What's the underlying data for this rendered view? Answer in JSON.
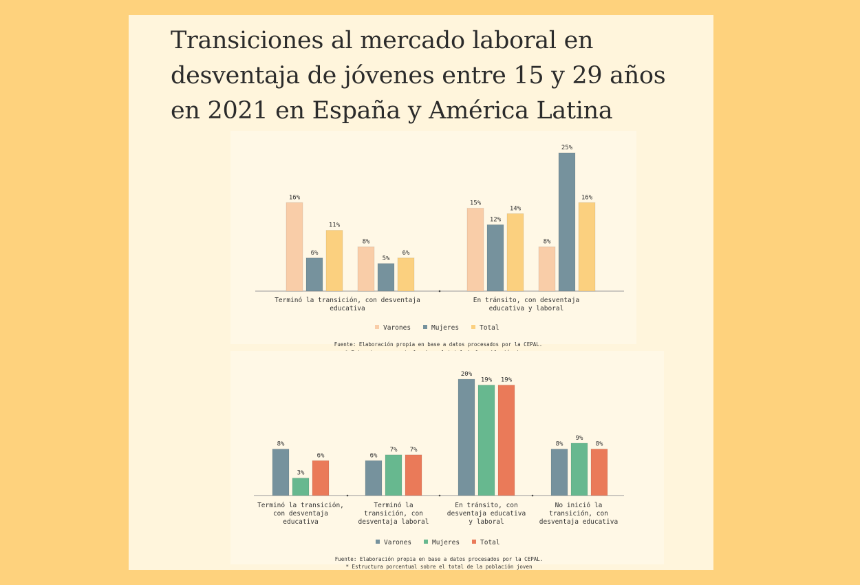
{
  "page": {
    "title": "Transiciones al mercado laboral en desventaja de jóvenes entre 15 y 29 años en 2021 en España y América Latina"
  },
  "chart_data": [
    {
      "type": "bar",
      "categories": [
        "Terminó la transición, con desventaja educativa",
        "En tránsito, con desventaja educativa y laboral"
      ],
      "groups": [
        {
          "category_index": 0,
          "series": [
            {
              "name": "Varones",
              "value": 16
            },
            {
              "name": "Mujeres",
              "value": 6
            },
            {
              "name": "Total",
              "value": 11
            }
          ]
        },
        {
          "category_index": 0,
          "series": [
            {
              "name": "Varones",
              "value": 8
            },
            {
              "name": "Mujeres",
              "value": 5
            },
            {
              "name": "Total",
              "value": 6
            }
          ]
        },
        {
          "category_index": 1,
          "series": [
            {
              "name": "Varones",
              "value": 15
            },
            {
              "name": "Mujeres",
              "value": 12
            },
            {
              "name": "Total",
              "value": 14
            }
          ]
        },
        {
          "category_index": 1,
          "series": [
            {
              "name": "Varones",
              "value": 8
            },
            {
              "name": "Mujeres",
              "value": 25
            },
            {
              "name": "Total",
              "value": 16
            }
          ]
        }
      ],
      "value_labels": [
        [
          "16%",
          "6%",
          "11%"
        ],
        [
          "8%",
          "5%",
          "6%"
        ],
        [
          "15%",
          "12%",
          "14%"
        ],
        [
          "8%",
          "25%",
          "16%"
        ]
      ],
      "legend": [
        "Varones",
        "Mujeres",
        "Total"
      ],
      "colors": [
        "#f9cda8",
        "#76929d",
        "#fbd07f"
      ],
      "legend_placement": "bottom",
      "ylim": [
        0,
        25
      ],
      "grid": false,
      "source": "Fuente: Elaboración propia en base a datos procesados por la CEPAL.",
      "note": "* Estructura porcentual sobre el total de la población joven"
    },
    {
      "type": "bar",
      "categories": [
        "Terminó la transición, con desventaja educativa",
        "Terminó la transición, con desventaja laboral",
        "En tránsito, con desventaja educativa y laboral",
        "No inició la transición, con desventaja educativa"
      ],
      "category_lines": [
        [
          "Terminó la transición,",
          "con desventaja",
          "educativa"
        ],
        [
          "Terminó la",
          "transición, con",
          "desventaja laboral"
        ],
        [
          "En tránsito, con",
          "desventaja educativa",
          "y laboral"
        ],
        [
          "No inició la",
          "transición, con",
          "desventaja educativa"
        ]
      ],
      "series": [
        {
          "name": "Varones",
          "values": [
            8,
            6,
            20,
            8
          ]
        },
        {
          "name": "Mujeres",
          "values": [
            3,
            7,
            19,
            9
          ]
        },
        {
          "name": "Total",
          "values": [
            6,
            7,
            19,
            8
          ]
        }
      ],
      "value_labels": [
        [
          "8%",
          "3%",
          "6%"
        ],
        [
          "6%",
          "7%",
          "7%"
        ],
        [
          "20%",
          "19%",
          "19%"
        ],
        [
          "8%",
          "9%",
          "8%"
        ]
      ],
      "legend": [
        "Varones",
        "Mujeres",
        "Total"
      ],
      "colors": [
        "#76929d",
        "#67b88f",
        "#ea7a59"
      ],
      "legend_placement": "bottom",
      "ylim": [
        0,
        20
      ],
      "grid": false,
      "source": "Fuente: Elaboración propia en base a datos procesados por la CEPAL.",
      "note": "* Estructura porcentual sobre el total de la población joven"
    }
  ],
  "chart1_category_lines": [
    [
      "Terminó la transición, con desventaja",
      "educativa"
    ],
    [
      "En tránsito, con desventaja",
      "educativa y laboral"
    ]
  ]
}
